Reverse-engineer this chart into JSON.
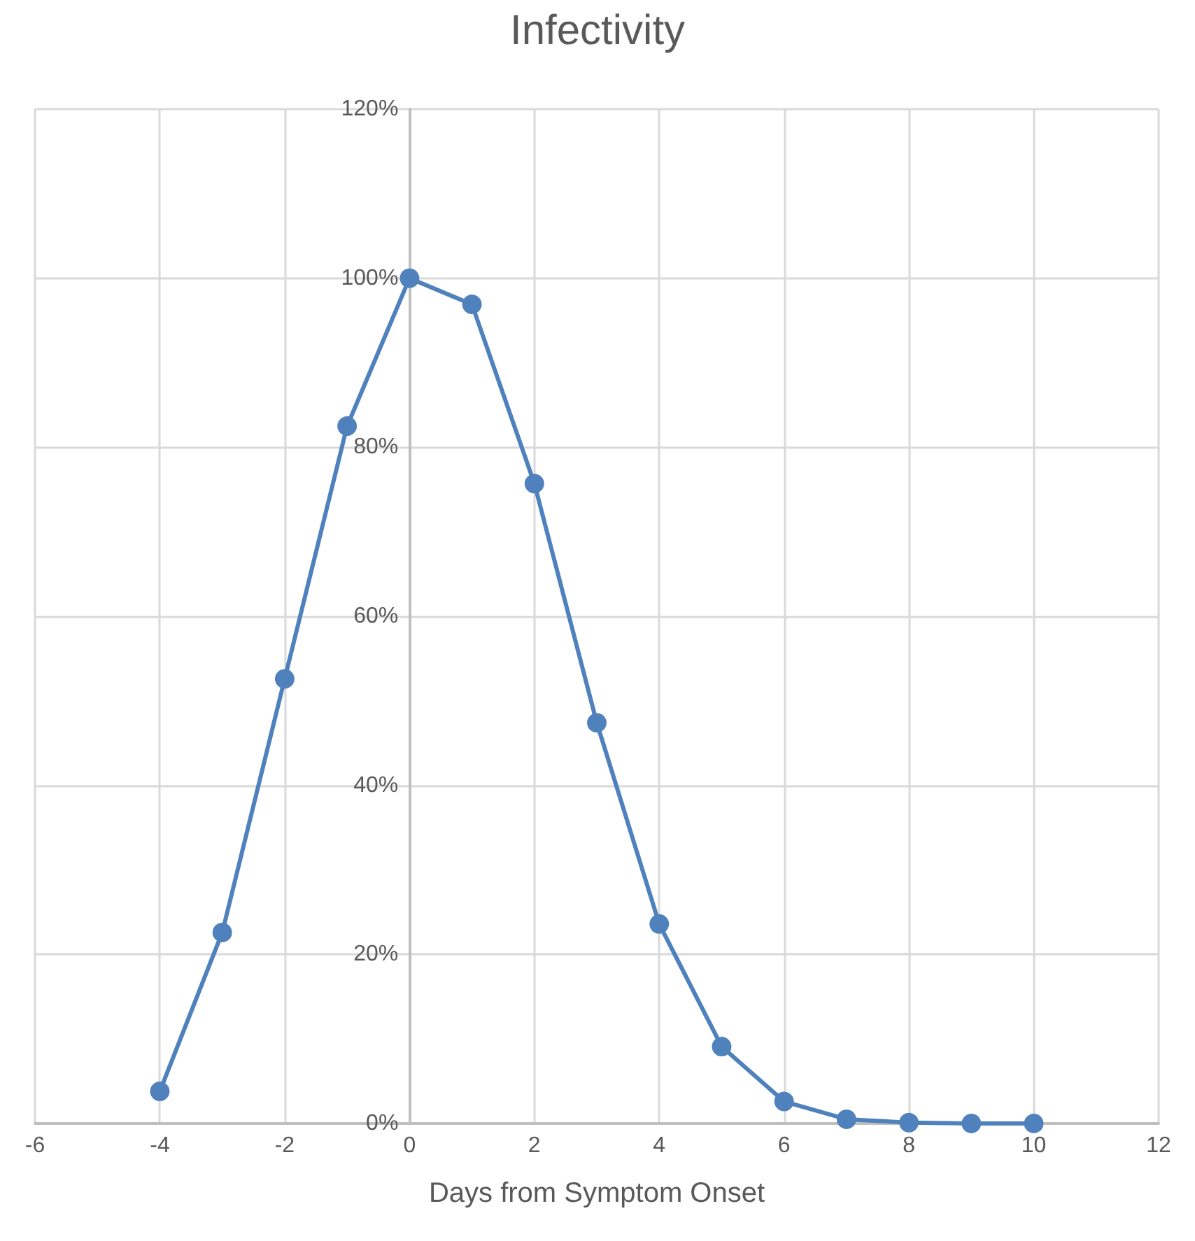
{
  "chart_data": {
    "type": "line",
    "title": "Infectivity",
    "xlabel": "Days from Symptom Onset",
    "x": [
      -4,
      -3,
      -2,
      -1,
      0,
      1,
      2,
      3,
      4,
      5,
      6,
      7,
      8,
      9,
      10
    ],
    "series": [
      {
        "color": "#4f81bd",
        "values": [
          3.8,
          22.6,
          52.6,
          82.5,
          100,
          96.9,
          75.7,
          47.4,
          23.6,
          9.1,
          2.6,
          0.5,
          0.1,
          0,
          0
        ]
      }
    ],
    "xlim": [
      -6,
      12
    ],
    "xticks": [
      -6,
      -4,
      -2,
      0,
      2,
      4,
      6,
      8,
      10,
      12
    ],
    "ylim": [
      0,
      120
    ],
    "yticks": [
      {
        "value": 0,
        "label": "0%"
      },
      {
        "value": 20,
        "label": "20%"
      },
      {
        "value": 40,
        "label": "40%"
      },
      {
        "value": 60,
        "label": "60%"
      },
      {
        "value": 80,
        "label": "80%"
      },
      {
        "value": 100,
        "label": "100%"
      },
      {
        "value": 120,
        "label": "120%"
      }
    ],
    "grid": true,
    "marker": "circle",
    "line_style": "solid"
  }
}
